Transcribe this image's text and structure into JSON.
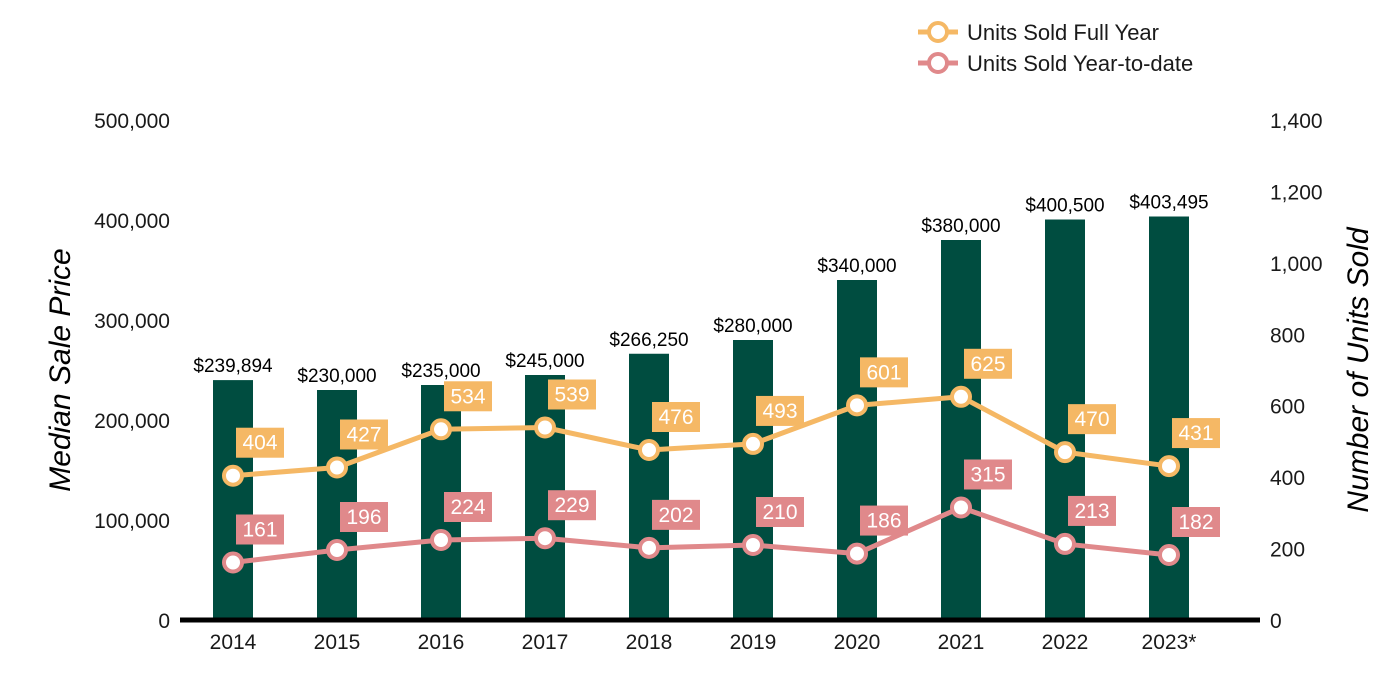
{
  "chart_data": {
    "type": "bar",
    "categories": [
      "2014",
      "2015",
      "2016",
      "2017",
      "2018",
      "2019",
      "2020",
      "2021",
      "2022",
      "2023*"
    ],
    "bar_series": {
      "values": [
        239894,
        230000,
        235000,
        245000,
        266250,
        280000,
        340000,
        380000,
        400500,
        403495
      ],
      "labels": [
        "$239,894",
        "$230,000",
        "$235,000",
        "$245,000",
        "$266,250",
        "$280,000",
        "$340,000",
        "$380,000",
        "$400,500",
        "$403,495"
      ],
      "color": "#004d40"
    },
    "series": [
      {
        "name": "Units Sold Full Year",
        "type": "line",
        "axis": "right",
        "values": [
          404,
          427,
          534,
          539,
          476,
          493,
          601,
          625,
          470,
          431
        ],
        "color": "#f5b865"
      },
      {
        "name": "Units Sold Year-to-date",
        "type": "line",
        "axis": "right",
        "values": [
          161,
          196,
          224,
          229,
          202,
          210,
          186,
          315,
          213,
          182
        ],
        "color": "#e0898b"
      }
    ],
    "ylabel": "Median Sale Price",
    "y2label": "Number of Units Sold",
    "ylim": [
      0,
      500000
    ],
    "y2lim": [
      0,
      1400
    ],
    "yticks": [
      "0",
      "100,000",
      "200,000",
      "300,000",
      "400,000",
      "500,000"
    ],
    "y2ticks": [
      "0",
      "200",
      "400",
      "600",
      "800",
      "1,000",
      "1,200",
      "1,400"
    ],
    "legend_position": "top-right",
    "grid": false
  }
}
